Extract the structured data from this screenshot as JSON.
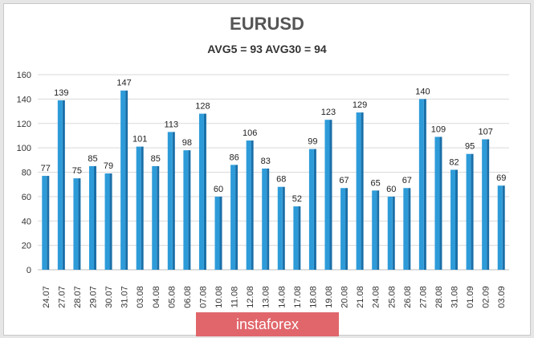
{
  "chart_data": {
    "type": "bar",
    "title": "EURUSD",
    "subtitle": "AVG5 = 93 AVG30 = 94",
    "categories": [
      "24.07",
      "27.07",
      "28.07",
      "29.07",
      "30.07",
      "31.07",
      "03.08",
      "04.08",
      "05.08",
      "06.08",
      "07.08",
      "10.08",
      "11.08",
      "12.08",
      "13.08",
      "14.08",
      "17.08",
      "18.08",
      "19.08",
      "20.08",
      "21.08",
      "24.08",
      "25.08",
      "26.08",
      "27.08",
      "28.08",
      "31.08",
      "01.09",
      "02.09",
      "03.09"
    ],
    "values": [
      77,
      139,
      75,
      85,
      79,
      147,
      101,
      85,
      113,
      98,
      128,
      60,
      86,
      106,
      83,
      68,
      52,
      99,
      123,
      67,
      129,
      65,
      60,
      67,
      140,
      109,
      82,
      95,
      107,
      69
    ],
    "ylim": [
      0,
      160
    ],
    "yticks": [
      0,
      20,
      40,
      60,
      80,
      100,
      120,
      140,
      160
    ],
    "grid": true,
    "bar_color": "#2e9bd9",
    "bar_dark": "#1a6fa8"
  },
  "watermark": "instaforex"
}
